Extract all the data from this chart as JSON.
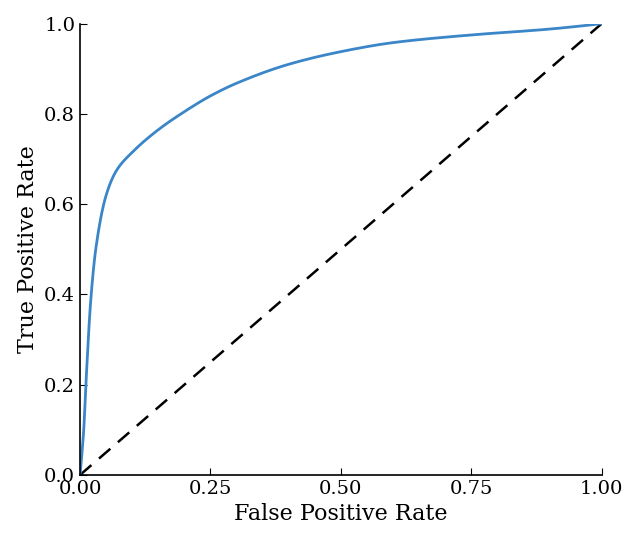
{
  "title": "",
  "xlabel": "False Positive Rate",
  "ylabel": "True Positive Rate",
  "xlim": [
    0.0,
    1.0
  ],
  "ylim": [
    0.0,
    1.0
  ],
  "xticks": [
    0.0,
    0.25,
    0.5,
    0.75,
    1.0
  ],
  "yticks": [
    0.0,
    0.2,
    0.4,
    0.6,
    0.8,
    1.0
  ],
  "roc_color": "#3a86c8",
  "diag_color": "black",
  "roc_linewidth": 2.0,
  "diag_linewidth": 1.8,
  "xlabel_fontsize": 16,
  "ylabel_fontsize": 16,
  "tick_fontsize": 14,
  "background_color": "#ffffff",
  "fpr_pts": [
    0.0,
    0.003,
    0.007,
    0.012,
    0.02,
    0.03,
    0.05,
    0.07,
    0.1,
    0.15,
    0.2,
    0.25,
    0.3,
    0.4,
    0.5,
    0.6,
    0.75,
    0.9,
    1.0
  ],
  "tpr_pts": [
    0.0,
    0.04,
    0.1,
    0.22,
    0.38,
    0.5,
    0.62,
    0.675,
    0.715,
    0.765,
    0.805,
    0.84,
    0.868,
    0.91,
    0.938,
    0.958,
    0.975,
    0.988,
    1.0
  ]
}
